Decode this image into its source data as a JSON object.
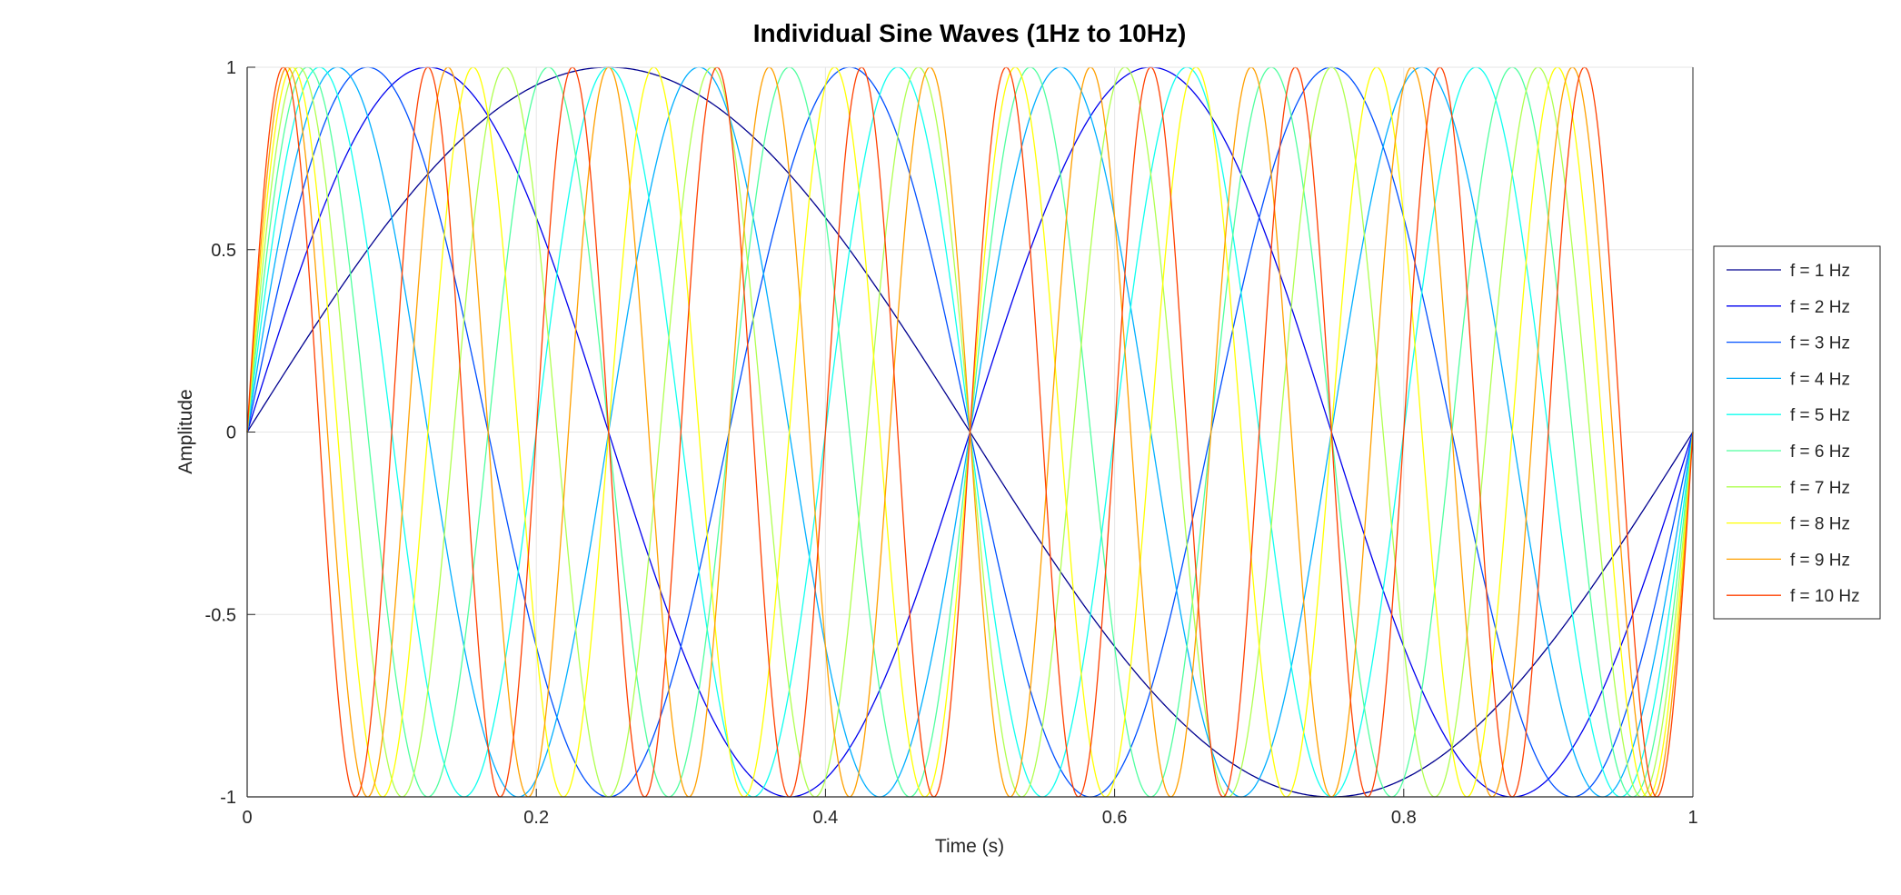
{
  "chart_data": {
    "type": "line",
    "title": "Individual Sine Waves (1Hz to 10Hz)",
    "xlabel": "Time (s)",
    "ylabel": "Amplitude",
    "xlim": [
      0,
      1
    ],
    "ylim": [
      -1,
      1
    ],
    "x_ticks": [
      0,
      0.2,
      0.4,
      0.6,
      0.8,
      1
    ],
    "x_tick_labels": [
      "0",
      "0.2",
      "0.4",
      "0.6",
      "0.8",
      "1"
    ],
    "y_ticks": [
      -1,
      -0.5,
      0,
      0.5,
      1
    ],
    "y_tick_labels": [
      "-1",
      "-0.5",
      "0",
      "0.5",
      "1"
    ],
    "grid": true,
    "legend_position": "outside-right",
    "function": "sin(2*pi*f*t)",
    "sample_step": 0.001,
    "series": [
      {
        "name": "f = 1 Hz",
        "frequency": 1,
        "color": "#00008f"
      },
      {
        "name": "f = 2 Hz",
        "frequency": 2,
        "color": "#0000ef"
      },
      {
        "name": "f = 3 Hz",
        "frequency": 3,
        "color": "#0050ff"
      },
      {
        "name": "f = 4 Hz",
        "frequency": 4,
        "color": "#00afff"
      },
      {
        "name": "f = 5 Hz",
        "frequency": 5,
        "color": "#0fffef"
      },
      {
        "name": "f = 6 Hz",
        "frequency": 6,
        "color": "#50ff9f"
      },
      {
        "name": "f = 7 Hz",
        "frequency": 7,
        "color": "#afff50"
      },
      {
        "name": "f = 8 Hz",
        "frequency": 8,
        "color": "#ffff00"
      },
      {
        "name": "f = 9 Hz",
        "frequency": 9,
        "color": "#ffa000"
      },
      {
        "name": "f = 10 Hz",
        "frequency": 10,
        "color": "#ff4000"
      }
    ]
  }
}
